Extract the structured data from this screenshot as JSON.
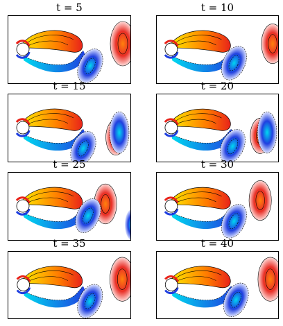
{
  "figure": {
    "panels": [
      {
        "id": "t5",
        "t_label": "t = 5"
      },
      {
        "id": "t10",
        "t_label": "t = 10"
      },
      {
        "id": "t15",
        "t_label": "t = 15"
      },
      {
        "id": "t20",
        "t_label": "t = 20"
      },
      {
        "id": "t25",
        "t_label": "t = 25"
      },
      {
        "id": "t30",
        "t_label": "t = 30"
      },
      {
        "id": "t35",
        "t_label": "t = 35"
      },
      {
        "id": "t40",
        "t_label": "t = 40"
      }
    ],
    "colors": {
      "positive_vorticity": "#e8231a",
      "positive_core": "#ff7a00",
      "positive_inner": "#ffe400",
      "negative_vorticity": "#1f3fe0",
      "negative_inner": "#00d8f0",
      "cylinder": "#ffffff",
      "frame": "#000000"
    }
  }
}
